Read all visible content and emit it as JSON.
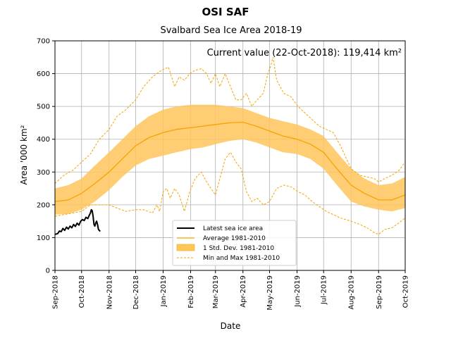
{
  "chart_data": {
    "type": "line",
    "title": "OSI SAF",
    "subtitle": "Svalbard Sea Ice Area 2018-19",
    "xlabel": "Date",
    "ylabel": "Area '000 km²",
    "annotation": "Current value (22-Oct-2018): 119,414 km²",
    "ylim": [
      0,
      700
    ],
    "xlim": [
      0,
      395
    ],
    "yticks": [
      0,
      100,
      200,
      300,
      400,
      500,
      600,
      700
    ],
    "xticks": [
      {
        "label": "Sep-2018",
        "day": 0
      },
      {
        "label": "Oct-2018",
        "day": 30
      },
      {
        "label": "Nov-2018",
        "day": 61
      },
      {
        "label": "Dec-2018",
        "day": 91
      },
      {
        "label": "Jan-2019",
        "day": 122
      },
      {
        "label": "Feb-2019",
        "day": 153
      },
      {
        "label": "Mar-2019",
        "day": 181
      },
      {
        "label": "Apr-2019",
        "day": 212
      },
      {
        "label": "May-2019",
        "day": 242
      },
      {
        "label": "Jun-2019",
        "day": 273
      },
      {
        "label": "Jul-2019",
        "day": 303
      },
      {
        "label": "Aug-2019",
        "day": 334
      },
      {
        "label": "Sep-2019",
        "day": 365
      },
      {
        "label": "Oct-2019",
        "day": 395
      }
    ],
    "grid": true,
    "legend_position": "bottom-center",
    "legend": {
      "latest": "Latest sea ice area",
      "average": "Average 1981-2010",
      "std": "1 Std. Dev. 1981-2010",
      "minmax": "Min and Max 1981-2010"
    },
    "colors": {
      "latest": "#000000",
      "average": "#f5a300",
      "band": "#ffc65c",
      "minmax": "#f5a300",
      "grid": "#b0b0b0"
    },
    "series": [
      {
        "name": "Latest sea ice area",
        "x": [
          0,
          3,
          5,
          7,
          9,
          11,
          13,
          15,
          17,
          19,
          21,
          23,
          25,
          27,
          29,
          31,
          33,
          35,
          37,
          39,
          40,
          41,
          42,
          43,
          44,
          45,
          46,
          47,
          48,
          49,
          50,
          51
        ],
        "y": [
          110,
          112,
          120,
          118,
          128,
          122,
          132,
          126,
          135,
          130,
          140,
          134,
          144,
          138,
          150,
          155,
          152,
          162,
          158,
          170,
          175,
          185,
          182,
          165,
          140,
          135,
          145,
          150,
          140,
          125,
          122,
          119
        ]
      },
      {
        "name": "Average 1981-2010",
        "x": [
          0,
          15,
          30,
          45,
          61,
          76,
          91,
          106,
          122,
          137,
          153,
          167,
          181,
          197,
          212,
          227,
          242,
          257,
          273,
          288,
          303,
          318,
          334,
          349,
          365,
          380,
          395
        ],
        "y": [
          210,
          215,
          235,
          265,
          300,
          340,
          380,
          405,
          420,
          430,
          435,
          440,
          445,
          450,
          452,
          440,
          425,
          410,
          400,
          385,
          360,
          310,
          260,
          235,
          215,
          215,
          230
        ]
      },
      {
        "name": "1 Std. Dev. upper",
        "x": [
          0,
          15,
          30,
          45,
          61,
          76,
          91,
          106,
          122,
          137,
          153,
          167,
          181,
          197,
          212,
          227,
          242,
          257,
          273,
          288,
          303,
          318,
          334,
          349,
          365,
          380,
          395
        ],
        "y": [
          250,
          260,
          280,
          320,
          360,
          400,
          440,
          470,
          490,
          500,
          505,
          505,
          505,
          500,
          495,
          480,
          465,
          455,
          445,
          430,
          410,
          360,
          310,
          280,
          260,
          265,
          285
        ]
      },
      {
        "name": "1 Std. Dev. lower",
        "x": [
          0,
          15,
          30,
          45,
          61,
          76,
          91,
          106,
          122,
          137,
          153,
          167,
          181,
          197,
          212,
          227,
          242,
          257,
          273,
          288,
          303,
          318,
          334,
          349,
          365,
          380,
          395
        ],
        "y": [
          170,
          172,
          185,
          210,
          245,
          285,
          320,
          340,
          350,
          360,
          370,
          375,
          385,
          395,
          400,
          390,
          375,
          360,
          355,
          340,
          310,
          260,
          210,
          195,
          185,
          180,
          190
        ]
      },
      {
        "name": "Max 1981-2010",
        "x": [
          0,
          10,
          20,
          30,
          40,
          50,
          61,
          70,
          80,
          91,
          100,
          110,
          120,
          128,
          135,
          140,
          146,
          152,
          158,
          165,
          171,
          176,
          181,
          186,
          192,
          198,
          204,
          210,
          216,
          222,
          228,
          235,
          240,
          243,
          246,
          250,
          258,
          266,
          274,
          282,
          290,
          298,
          306,
          314,
          322,
          334,
          344,
          352,
          360,
          365,
          372,
          380,
          388,
          395
        ],
        "y": [
          265,
          290,
          305,
          330,
          355,
          400,
          430,
          470,
          490,
          520,
          560,
          590,
          610,
          620,
          560,
          590,
          580,
          600,
          610,
          615,
          600,
          570,
          600,
          560,
          600,
          560,
          520,
          520,
          540,
          500,
          520,
          540,
          600,
          620,
          650,
          580,
          540,
          530,
          500,
          480,
          460,
          440,
          430,
          420,
          380,
          310,
          290,
          285,
          280,
          270,
          280,
          290,
          305,
          330
        ]
      },
      {
        "name": "Min 1981-2010",
        "x": [
          0,
          10,
          20,
          30,
          40,
          50,
          61,
          70,
          80,
          91,
          100,
          110,
          115,
          118,
          122,
          126,
          130,
          135,
          140,
          146,
          152,
          158,
          165,
          171,
          176,
          181,
          186,
          192,
          198,
          204,
          210,
          216,
          222,
          228,
          235,
          242,
          250,
          258,
          266,
          274,
          282,
          290,
          298,
          306,
          314,
          322,
          334,
          344,
          352,
          360,
          365,
          372,
          380,
          388,
          395
        ],
        "y": [
          165,
          170,
          175,
          180,
          200,
          200,
          200,
          190,
          180,
          185,
          185,
          175,
          200,
          180,
          240,
          250,
          220,
          250,
          230,
          180,
          240,
          280,
          300,
          270,
          250,
          230,
          280,
          340,
          360,
          330,
          310,
          240,
          210,
          220,
          200,
          210,
          250,
          260,
          255,
          240,
          230,
          210,
          195,
          180,
          170,
          160,
          150,
          140,
          130,
          115,
          110,
          125,
          130,
          145,
          160
        ]
      }
    ]
  }
}
